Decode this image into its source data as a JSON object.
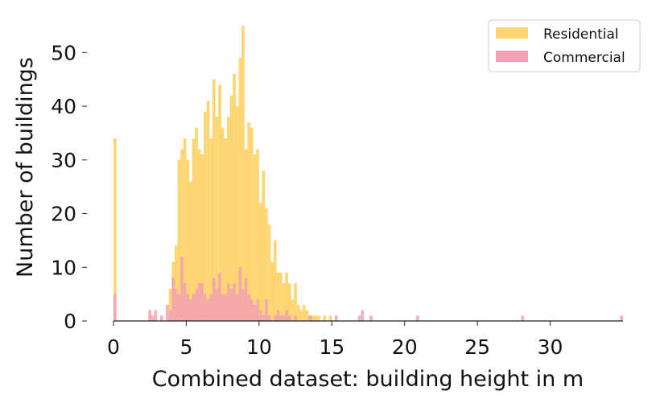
{
  "chart_data": {
    "type": "histogram",
    "xlabel": "Combined dataset: building height in m",
    "ylabel": "Number of buildings",
    "xlim": [
      0,
      35
    ],
    "ylim": [
      0,
      55
    ],
    "xticks": [
      0,
      5,
      10,
      15,
      20,
      25,
      30
    ],
    "yticks": [
      0,
      10,
      20,
      30,
      40,
      50
    ],
    "bin_width": 0.2,
    "legend_position": "top-right",
    "grid": false,
    "series": [
      {
        "name": "Residential",
        "color": "#fdd571",
        "bins": [
          [
            0.0,
            34
          ],
          [
            2.4,
            1
          ],
          [
            3.8,
            6
          ],
          [
            4.0,
            11
          ],
          [
            4.2,
            14
          ],
          [
            4.4,
            30
          ],
          [
            4.6,
            32
          ],
          [
            4.8,
            34
          ],
          [
            5.0,
            30
          ],
          [
            5.2,
            26
          ],
          [
            5.4,
            34
          ],
          [
            5.6,
            36
          ],
          [
            5.8,
            32
          ],
          [
            6.0,
            31
          ],
          [
            6.2,
            39
          ],
          [
            6.4,
            41
          ],
          [
            6.6,
            34
          ],
          [
            6.8,
            45
          ],
          [
            7.0,
            38
          ],
          [
            7.2,
            44
          ],
          [
            7.4,
            36
          ],
          [
            7.6,
            34
          ],
          [
            7.8,
            38
          ],
          [
            8.0,
            42
          ],
          [
            8.2,
            46
          ],
          [
            8.4,
            40
          ],
          [
            8.6,
            49
          ],
          [
            8.8,
            55
          ],
          [
            9.0,
            32
          ],
          [
            9.2,
            37
          ],
          [
            9.4,
            36
          ],
          [
            9.6,
            31
          ],
          [
            9.8,
            32
          ],
          [
            10.0,
            22
          ],
          [
            10.2,
            28
          ],
          [
            10.4,
            21
          ],
          [
            10.6,
            18
          ],
          [
            10.8,
            11
          ],
          [
            11.0,
            15
          ],
          [
            11.2,
            9
          ],
          [
            11.4,
            9
          ],
          [
            11.6,
            7
          ],
          [
            11.8,
            9
          ],
          [
            12.0,
            7
          ],
          [
            12.2,
            4
          ],
          [
            12.4,
            7
          ],
          [
            12.6,
            3
          ],
          [
            12.8,
            2
          ],
          [
            13.0,
            3
          ],
          [
            13.2,
            2
          ],
          [
            13.4,
            1
          ],
          [
            13.6,
            1
          ],
          [
            13.8,
            1
          ],
          [
            14.0,
            1
          ],
          [
            14.4,
            1
          ],
          [
            14.8,
            1
          ]
        ]
      },
      {
        "name": "Commercial",
        "color": "#f4a0b3",
        "bins": [
          [
            0.0,
            5
          ],
          [
            2.4,
            2
          ],
          [
            2.6,
            1
          ],
          [
            2.8,
            2
          ],
          [
            3.2,
            1
          ],
          [
            3.6,
            3
          ],
          [
            3.8,
            2
          ],
          [
            4.0,
            8
          ],
          [
            4.2,
            6
          ],
          [
            4.4,
            5
          ],
          [
            4.6,
            12
          ],
          [
            4.8,
            7
          ],
          [
            5.0,
            5
          ],
          [
            5.2,
            4
          ],
          [
            5.4,
            5
          ],
          [
            5.6,
            6
          ],
          [
            5.8,
            7
          ],
          [
            6.0,
            7
          ],
          [
            6.2,
            5
          ],
          [
            6.4,
            4
          ],
          [
            6.6,
            5
          ],
          [
            6.8,
            8
          ],
          [
            7.0,
            6
          ],
          [
            7.2,
            9
          ],
          [
            7.4,
            5
          ],
          [
            7.6,
            5
          ],
          [
            7.8,
            7
          ],
          [
            8.0,
            6
          ],
          [
            8.2,
            7
          ],
          [
            8.4,
            5
          ],
          [
            8.6,
            10
          ],
          [
            8.8,
            6
          ],
          [
            9.0,
            8
          ],
          [
            9.2,
            5
          ],
          [
            9.4,
            4
          ],
          [
            9.6,
            3
          ],
          [
            9.8,
            4
          ],
          [
            10.0,
            2
          ],
          [
            10.2,
            1
          ],
          [
            10.4,
            4
          ],
          [
            10.6,
            1
          ],
          [
            11.0,
            1
          ],
          [
            11.2,
            2
          ],
          [
            11.4,
            1
          ],
          [
            11.6,
            1
          ],
          [
            11.8,
            2
          ],
          [
            12.0,
            1
          ],
          [
            12.4,
            1
          ],
          [
            13.4,
            1
          ],
          [
            15.2,
            1
          ],
          [
            16.8,
            1
          ],
          [
            17.0,
            2
          ],
          [
            17.6,
            1
          ],
          [
            20.8,
            1
          ],
          [
            28.0,
            1
          ],
          [
            34.8,
            1
          ]
        ]
      }
    ]
  }
}
